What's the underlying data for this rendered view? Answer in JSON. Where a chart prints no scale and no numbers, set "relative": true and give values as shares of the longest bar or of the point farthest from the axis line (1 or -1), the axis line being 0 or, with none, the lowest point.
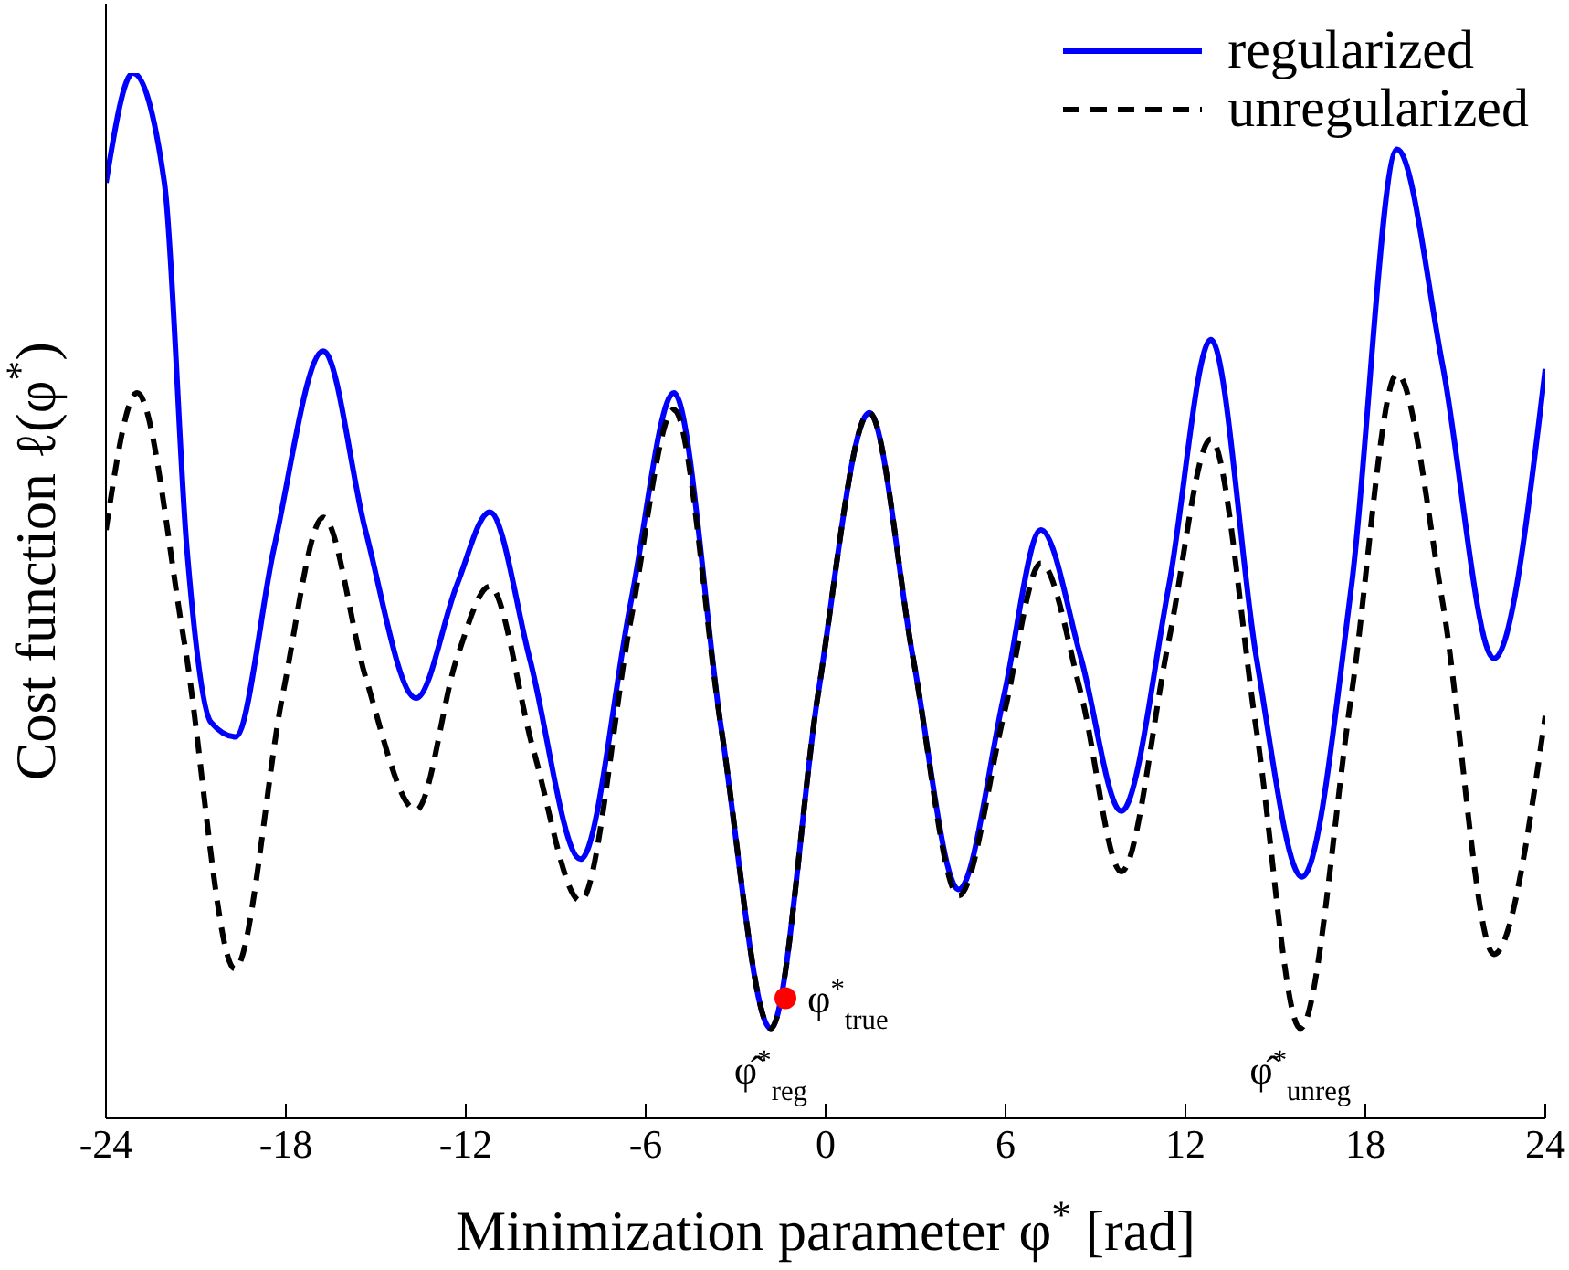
{
  "chart_data": {
    "type": "line",
    "relative": true,
    "xlabel": "Minimization parameter φ$^{*}$ [rad]",
    "ylabel": "Cost function ℓ(φ$^{*}$)",
    "xlim": [
      -24,
      24
    ],
    "xticks": [
      -24,
      -18,
      -12,
      -6,
      0,
      6,
      12,
      18,
      24
    ],
    "legend": "top right",
    "series": [
      {
        "name": "regularized",
        "color": "#0000ff",
        "line_style": "solid",
        "x": [
          -24,
          -23.1,
          -22.05,
          -21.3,
          -20.5,
          -19.68,
          -18.4,
          -16.75,
          -15.35,
          -13.65,
          -12.3,
          -11.2,
          -9.87,
          -8.17,
          -6.5,
          -5.06,
          -3.47,
          -1.83,
          -0.25,
          1.46,
          2.92,
          4.44,
          5.96,
          7.18,
          8.52,
          9.86,
          11.45,
          12.85,
          14.37,
          15.89,
          17.54,
          19.06,
          20.58,
          22.29,
          24
        ],
        "values": [
          0.895,
          1,
          0.895,
          0.545,
          0.379,
          0.365,
          0.545,
          0.734,
          0.563,
          0.402,
          0.51,
          0.58,
          0.44,
          0.248,
          0.493,
          0.694,
          0.371,
          0.086,
          0.406,
          0.675,
          0.44,
          0.219,
          0.406,
          0.563,
          0.44,
          0.294,
          0.51,
          0.745,
          0.44,
          0.231,
          0.51,
          0.927,
          0.72,
          0.44,
          0.717
        ]
      },
      {
        "name": "unregularized",
        "color": "#000000",
        "line_style": "dashed",
        "x": [
          -24,
          -22.96,
          -21.4,
          -19.7,
          -18.1,
          -16.75,
          -15.35,
          -13.65,
          -12.3,
          -11.2,
          -9.75,
          -8.17,
          -6.5,
          -5.06,
          -3.47,
          -1.83,
          -0.25,
          1.46,
          2.92,
          4.44,
          5.96,
          7.18,
          8.52,
          9.86,
          11.45,
          12.85,
          14.37,
          15.83,
          17.54,
          19.06,
          20.58,
          22.29,
          24
        ],
        "values": [
          0.563,
          0.694,
          0.458,
          0.143,
          0.406,
          0.575,
          0.423,
          0.295,
          0.44,
          0.509,
          0.353,
          0.208,
          0.476,
          0.678,
          0.371,
          0.086,
          0.406,
          0.675,
          0.44,
          0.213,
          0.388,
          0.531,
          0.406,
          0.236,
          0.458,
          0.65,
          0.371,
          0.086,
          0.406,
          0.712,
          0.493,
          0.157,
          0.385
        ]
      },
      {
        "type": "scatter",
        "color": "#ff0000",
        "x": [
          -1.34
        ],
        "values": [
          0.115
        ]
      }
    ],
    "annotations": [
      {
        "text": "φ$^{*}$$_{true}$",
        "x": -1.34,
        "y": 0.115
      },
      {
        "text": "φ̂$^{*}$$_{reg}$",
        "x": -1.83,
        "y": 0.086
      },
      {
        "text": "φ̂$^{*}$$_{unreg}$",
        "x": 15.83,
        "y": 0.086
      }
    ]
  }
}
